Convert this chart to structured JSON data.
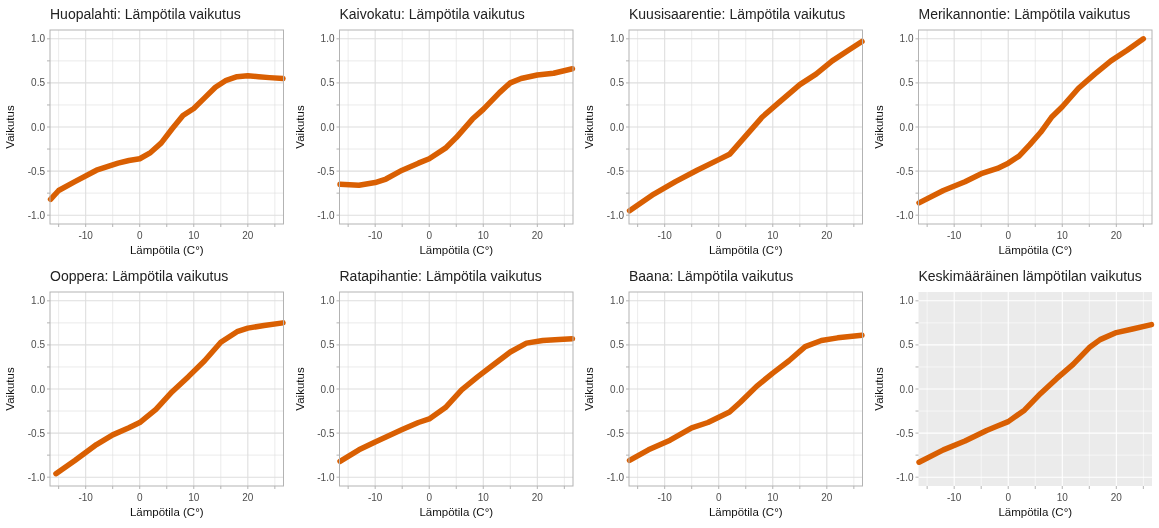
{
  "chart_data": [
    {
      "type": "line",
      "title": "Huopalahti: Lämpötila vaikutus",
      "xlabel": "Lämpötila (C°)",
      "ylabel": "Vaikutus",
      "xlim": [
        -16.6,
        26.6
      ],
      "ylim": [
        -1.1,
        1.1
      ],
      "xticks": [
        {
          "value": -15,
          "label": null
        },
        -10,
        {
          "value": -5,
          "label": null
        },
        0,
        {
          "value": 5,
          "label": null
        },
        10,
        {
          "value": 15,
          "label": null
        },
        20,
        {
          "value": 25,
          "label": null
        }
      ],
      "yticks": [
        {
          "value": -1,
          "label": "-1.0"
        },
        {
          "value": -0.75,
          "label": null
        },
        {
          "value": -0.5,
          "label": "-0.5"
        },
        {
          "value": -0.25,
          "label": null
        },
        {
          "value": 0,
          "label": "0.0"
        },
        {
          "value": 0.25,
          "label": null
        },
        {
          "value": 0.5,
          "label": "0.5"
        },
        {
          "value": 0.75,
          "label": null
        },
        {
          "value": 1,
          "label": "1.0"
        }
      ],
      "grid": true,
      "marker": "none",
      "line_style": "solid",
      "series": [
        {
          "color": "#d95f02",
          "x": [
            -16.5,
            -15,
            -12,
            -8,
            -6,
            -4,
            -2,
            0,
            2,
            4,
            6,
            8,
            10,
            12,
            14,
            16,
            18,
            20,
            22,
            24,
            26.5
          ],
          "values": [
            -0.82,
            -0.72,
            -0.62,
            -0.49,
            -0.45,
            -0.41,
            -0.38,
            -0.36,
            -0.29,
            -0.18,
            -0.02,
            0.13,
            0.21,
            0.33,
            0.45,
            0.53,
            0.57,
            0.58,
            0.57,
            0.56,
            0.55
          ]
        }
      ]
    },
    {
      "type": "line",
      "title": "Kaivokatu: Lämpötila vaikutus",
      "xlabel": "Lämpötila (C°)",
      "ylabel": "Vaikutus",
      "xlim": [
        -16.6,
        26.6
      ],
      "ylim": [
        -1.1,
        1.1
      ],
      "xticks": [
        {
          "value": -15,
          "label": null
        },
        -10,
        {
          "value": -5,
          "label": null
        },
        0,
        {
          "value": 5,
          "label": null
        },
        10,
        {
          "value": 15,
          "label": null
        },
        20,
        {
          "value": 25,
          "label": null
        }
      ],
      "yticks": [
        {
          "value": -1,
          "label": "-1.0"
        },
        {
          "value": -0.75,
          "label": null
        },
        {
          "value": -0.5,
          "label": "-0.5"
        },
        {
          "value": -0.25,
          "label": null
        },
        {
          "value": 0,
          "label": "0.0"
        },
        {
          "value": 0.25,
          "label": null
        },
        {
          "value": 0.5,
          "label": "0.5"
        },
        {
          "value": 0.75,
          "label": null
        },
        {
          "value": 1,
          "label": "1.0"
        }
      ],
      "grid": true,
      "marker": "none",
      "line_style": "solid",
      "series": [
        {
          "color": "#d95f02",
          "x": [
            -16.5,
            -13,
            -10,
            -8,
            -5,
            -2,
            0,
            3,
            5,
            8,
            10,
            13,
            15,
            17,
            20,
            23,
            26.5
          ],
          "values": [
            -0.65,
            -0.66,
            -0.63,
            -0.59,
            -0.49,
            -0.41,
            -0.36,
            -0.24,
            -0.12,
            0.09,
            0.2,
            0.39,
            0.5,
            0.55,
            0.59,
            0.61,
            0.66
          ]
        }
      ]
    },
    {
      "type": "line",
      "title": "Kuusisaarentie: Lämpötila vaikutus",
      "xlabel": "Lämpötila (C°)",
      "ylabel": "Vaikutus",
      "xlim": [
        -16.6,
        26.6
      ],
      "ylim": [
        -1.1,
        1.1
      ],
      "xticks": [
        {
          "value": -15,
          "label": null
        },
        -10,
        {
          "value": -5,
          "label": null
        },
        0,
        {
          "value": 5,
          "label": null
        },
        10,
        {
          "value": 15,
          "label": null
        },
        20,
        {
          "value": 25,
          "label": null
        }
      ],
      "yticks": [
        {
          "value": -1,
          "label": "-1.0"
        },
        {
          "value": -0.75,
          "label": null
        },
        {
          "value": -0.5,
          "label": "-0.5"
        },
        {
          "value": -0.25,
          "label": null
        },
        {
          "value": 0,
          "label": "0.0"
        },
        {
          "value": 0.25,
          "label": null
        },
        {
          "value": 0.5,
          "label": "0.5"
        },
        {
          "value": 0.75,
          "label": null
        },
        {
          "value": 1,
          "label": "1.0"
        }
      ],
      "grid": true,
      "marker": "none",
      "line_style": "solid",
      "series": [
        {
          "color": "#d95f02",
          "x": [
            -16.5,
            -12,
            -8,
            -4,
            0,
            2,
            5,
            8,
            11,
            15,
            18,
            21,
            24,
            26.5
          ],
          "values": [
            -0.95,
            -0.76,
            -0.62,
            -0.49,
            -0.37,
            -0.31,
            -0.1,
            0.11,
            0.27,
            0.48,
            0.6,
            0.75,
            0.87,
            0.97
          ]
        }
      ]
    },
    {
      "type": "line",
      "title": "Merikannontie: Lämpötila vaikutus",
      "xlabel": "Lämpötila (C°)",
      "ylabel": "Vaikutus",
      "xlim": [
        -16.6,
        26.6
      ],
      "ylim": [
        -1.1,
        1.1
      ],
      "xticks": [
        {
          "value": -15,
          "label": null
        },
        -10,
        {
          "value": -5,
          "label": null
        },
        0,
        {
          "value": 5,
          "label": null
        },
        10,
        {
          "value": 15,
          "label": null
        },
        20,
        {
          "value": 25,
          "label": null
        }
      ],
      "yticks": [
        {
          "value": -1,
          "label": "-1.0"
        },
        {
          "value": -0.75,
          "label": null
        },
        {
          "value": -0.5,
          "label": "-0.5"
        },
        {
          "value": -0.25,
          "label": null
        },
        {
          "value": 0,
          "label": "0.0"
        },
        {
          "value": 0.25,
          "label": null
        },
        {
          "value": 0.5,
          "label": "0.5"
        },
        {
          "value": 0.75,
          "label": null
        },
        {
          "value": 1,
          "label": "1.0"
        }
      ],
      "grid": true,
      "marker": "none",
      "line_style": "solid",
      "series": [
        {
          "color": "#d95f02",
          "x": [
            -16.5,
            -12,
            -8,
            -5,
            -2,
            0,
            2,
            4,
            6,
            8,
            10,
            13,
            16,
            19,
            22,
            25
          ],
          "values": [
            -0.86,
            -0.72,
            -0.62,
            -0.53,
            -0.47,
            -0.41,
            -0.33,
            -0.2,
            -0.06,
            0.11,
            0.23,
            0.44,
            0.6,
            0.75,
            0.87,
            1.0
          ]
        }
      ]
    },
    {
      "type": "line",
      "title": "Ooppera: Lämpötila vaikutus",
      "xlabel": "Lämpötila (C°)",
      "ylabel": "Vaikutus",
      "xlim": [
        -16.6,
        26.6
      ],
      "ylim": [
        -1.1,
        1.1
      ],
      "xticks": [
        {
          "value": -15,
          "label": null
        },
        -10,
        {
          "value": -5,
          "label": null
        },
        0,
        {
          "value": 5,
          "label": null
        },
        10,
        {
          "value": 15,
          "label": null
        },
        20,
        {
          "value": 25,
          "label": null
        }
      ],
      "yticks": [
        {
          "value": -1,
          "label": "-1.0"
        },
        {
          "value": -0.75,
          "label": null
        },
        {
          "value": -0.5,
          "label": "-0.5"
        },
        {
          "value": -0.25,
          "label": null
        },
        {
          "value": 0,
          "label": "0.0"
        },
        {
          "value": 0.25,
          "label": null
        },
        {
          "value": 0.5,
          "label": "0.5"
        },
        {
          "value": 0.75,
          "label": null
        },
        {
          "value": 1,
          "label": "1.0"
        }
      ],
      "grid": true,
      "marker": "none",
      "line_style": "solid",
      "series": [
        {
          "color": "#d95f02",
          "x": [
            -15.5,
            -12,
            -8,
            -5,
            -2,
            0,
            3,
            6,
            9,
            12,
            15,
            18,
            20,
            23,
            26.5
          ],
          "values": [
            -0.96,
            -0.81,
            -0.63,
            -0.52,
            -0.44,
            -0.38,
            -0.23,
            -0.03,
            0.14,
            0.32,
            0.53,
            0.65,
            0.69,
            0.72,
            0.75
          ]
        }
      ]
    },
    {
      "type": "line",
      "title": "Ratapihantie: Lämpötila vaikutus",
      "xlabel": "Lämpötila (C°)",
      "ylabel": "Vaikutus",
      "xlim": [
        -16.6,
        26.6
      ],
      "ylim": [
        -1.1,
        1.1
      ],
      "xticks": [
        {
          "value": -15,
          "label": null
        },
        -10,
        {
          "value": -5,
          "label": null
        },
        0,
        {
          "value": 5,
          "label": null
        },
        10,
        {
          "value": 15,
          "label": null
        },
        20,
        {
          "value": 25,
          "label": null
        }
      ],
      "yticks": [
        {
          "value": -1,
          "label": "-1.0"
        },
        {
          "value": -0.75,
          "label": null
        },
        {
          "value": -0.5,
          "label": "-0.5"
        },
        {
          "value": -0.25,
          "label": null
        },
        {
          "value": 0,
          "label": "0.0"
        },
        {
          "value": 0.25,
          "label": null
        },
        {
          "value": 0.5,
          "label": "0.5"
        },
        {
          "value": 0.75,
          "label": null
        },
        {
          "value": 1,
          "label": "1.0"
        }
      ],
      "grid": true,
      "marker": "none",
      "line_style": "solid",
      "series": [
        {
          "color": "#d95f02",
          "x": [
            -16.5,
            -13,
            -10,
            -5,
            -2,
            0,
            3,
            6,
            9,
            12,
            15,
            18,
            21,
            24,
            26.5
          ],
          "values": [
            -0.82,
            -0.69,
            -0.6,
            -0.46,
            -0.38,
            -0.34,
            -0.21,
            -0.01,
            0.14,
            0.28,
            0.42,
            0.52,
            0.55,
            0.56,
            0.57
          ]
        }
      ]
    },
    {
      "type": "line",
      "title": "Baana: Lämpötila vaikutus",
      "xlabel": "Lämpötila (C°)",
      "ylabel": "Vaikutus",
      "xlim": [
        -16.6,
        26.6
      ],
      "ylim": [
        -1.1,
        1.1
      ],
      "xticks": [
        {
          "value": -15,
          "label": null
        },
        -10,
        {
          "value": -5,
          "label": null
        },
        0,
        {
          "value": 5,
          "label": null
        },
        10,
        {
          "value": 15,
          "label": null
        },
        20,
        {
          "value": 25,
          "label": null
        }
      ],
      "yticks": [
        {
          "value": -1,
          "label": "-1.0"
        },
        {
          "value": -0.75,
          "label": null
        },
        {
          "value": -0.5,
          "label": "-0.5"
        },
        {
          "value": -0.25,
          "label": null
        },
        {
          "value": 0,
          "label": "0.0"
        },
        {
          "value": 0.25,
          "label": null
        },
        {
          "value": 0.5,
          "label": "0.5"
        },
        {
          "value": 0.75,
          "label": null
        },
        {
          "value": 1,
          "label": "1.0"
        }
      ],
      "grid": true,
      "marker": "none",
      "line_style": "solid",
      "series": [
        {
          "color": "#d95f02",
          "x": [
            -16.5,
            -13,
            -9,
            -5,
            -2,
            0,
            2,
            4,
            7,
            10,
            13,
            16,
            19,
            22,
            26.5
          ],
          "values": [
            -0.81,
            -0.69,
            -0.58,
            -0.44,
            -0.38,
            -0.32,
            -0.26,
            -0.15,
            0.03,
            0.18,
            0.32,
            0.48,
            0.55,
            0.58,
            0.61
          ]
        }
      ]
    },
    {
      "type": "line",
      "title": "Keskimääräinen lämpötilan vaikutus",
      "xlabel": "Lämpötila (C°)",
      "ylabel": "Vaikutus",
      "xlim": [
        -16.6,
        26.6
      ],
      "ylim": [
        -1.1,
        1.1
      ],
      "xticks": [
        {
          "value": -15,
          "label": null
        },
        -10,
        {
          "value": -5,
          "label": null
        },
        0,
        {
          "value": 5,
          "label": null
        },
        10,
        {
          "value": 15,
          "label": null
        },
        20,
        {
          "value": 25,
          "label": null
        }
      ],
      "yticks": [
        {
          "value": -1,
          "label": "-1.0"
        },
        {
          "value": -0.75,
          "label": null
        },
        {
          "value": -0.5,
          "label": "-0.5"
        },
        {
          "value": -0.25,
          "label": null
        },
        {
          "value": 0,
          "label": "0.0"
        },
        {
          "value": 0.25,
          "label": null
        },
        {
          "value": 0.5,
          "label": "0.5"
        },
        {
          "value": 0.75,
          "label": null
        },
        {
          "value": 1,
          "label": "1.0"
        }
      ],
      "grid": true,
      "marker": "none",
      "line_style": "solid",
      "series": [
        {
          "color": "#d95f02",
          "x": [
            -16.5,
            -12,
            -8,
            -4,
            -2,
            0,
            3,
            6,
            9,
            12,
            15,
            17,
            20,
            23,
            26.5
          ],
          "values": [
            -0.83,
            -0.69,
            -0.59,
            -0.47,
            -0.42,
            -0.37,
            -0.24,
            -0.05,
            0.12,
            0.28,
            0.47,
            0.56,
            0.64,
            0.68,
            0.73
          ]
        }
      ]
    }
  ]
}
